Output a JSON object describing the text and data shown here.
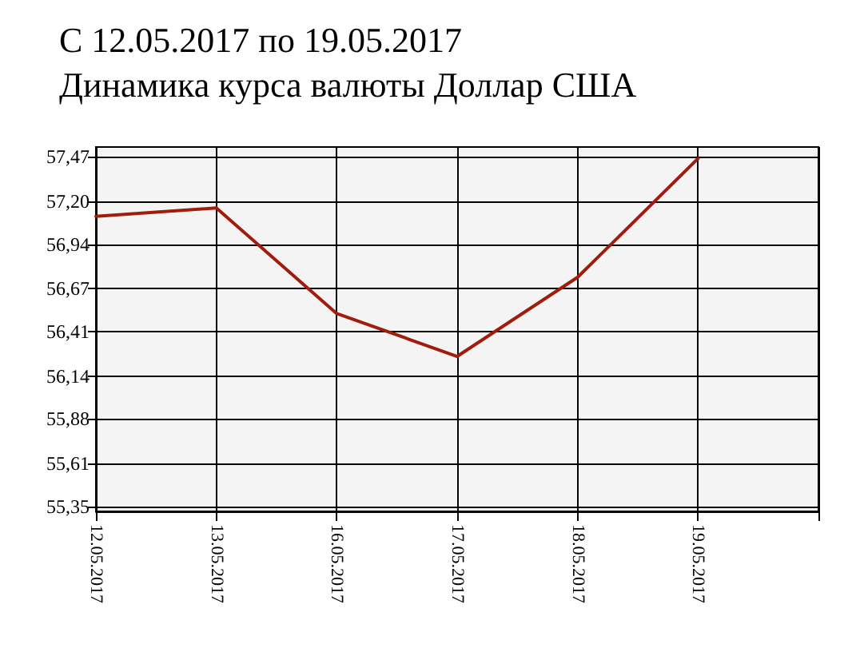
{
  "chart_data": {
    "type": "line",
    "title": "С 12.05.2017 по 19.05.2017\nДинамика курса валюты Доллар США",
    "categories": [
      "12.05.2017",
      "13.05.2017",
      "16.05.2017",
      "17.05.2017",
      "18.05.2017",
      "19.05.2017",
      null
    ],
    "series": [
      {
        "color": "#a01c0c",
        "values": [
          57.11,
          57.16,
          56.52,
          56.26,
          56.74,
          57.46,
          null
        ]
      }
    ],
    "ylim": [
      55.32,
      57.53
    ],
    "yticks": [
      {
        "value": 55.35,
        "label": "55,35"
      },
      {
        "value": 55.61,
        "label": "55,61"
      },
      {
        "value": 55.88,
        "label": "55,88"
      },
      {
        "value": 56.14,
        "label": "56,14"
      },
      {
        "value": 56.41,
        "label": "56,41"
      },
      {
        "value": 56.67,
        "label": "56,67"
      },
      {
        "value": 56.94,
        "label": "56,94"
      },
      {
        "value": 57.2,
        "label": "57,20"
      },
      {
        "value": 57.47,
        "label": "57,47"
      }
    ],
    "grid": true,
    "marker": "none",
    "line_style": "solid"
  }
}
